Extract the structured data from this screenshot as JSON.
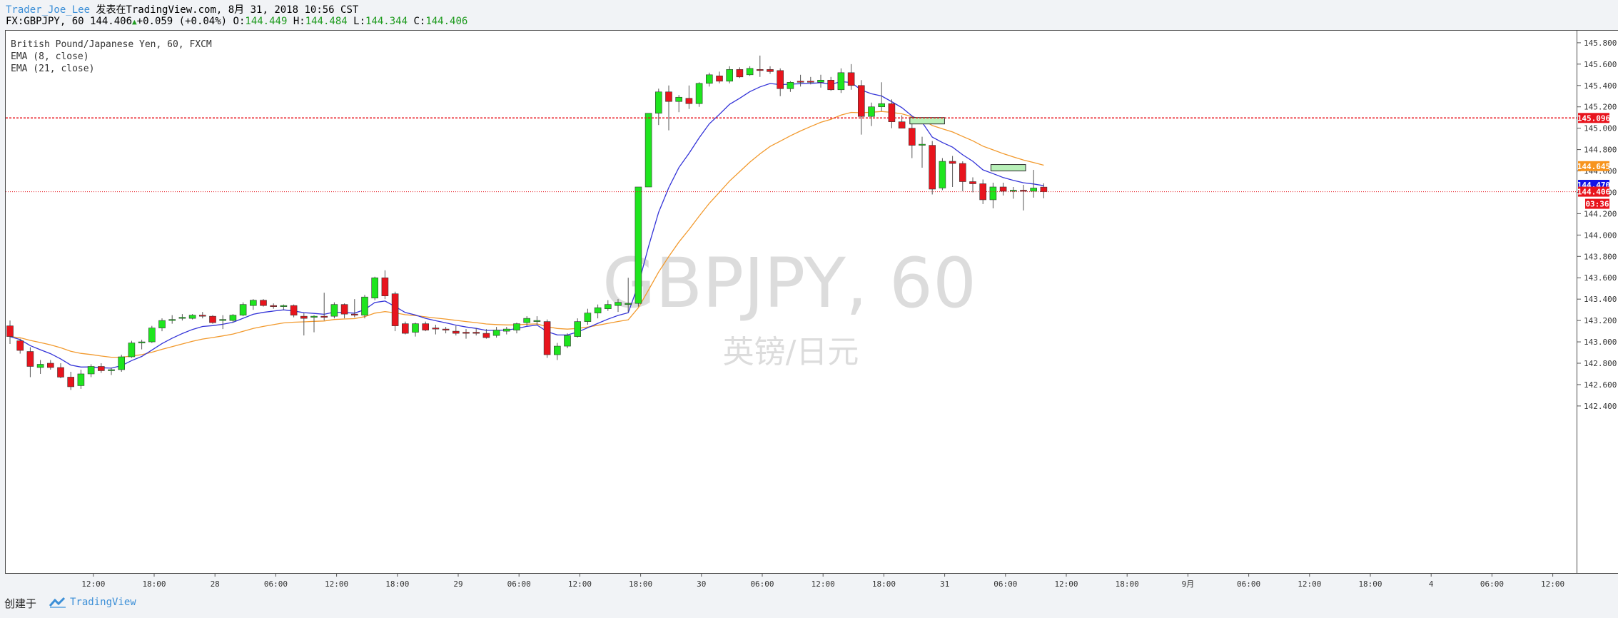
{
  "header": {
    "author": "Trader_Joe_Lee",
    "published": "发表在TradingView.com, 8月 31, 2018 10:56 CST",
    "symbol": "FX:GBPJPY, 60",
    "last": "144.406",
    "change": "+0.059 (+0.04%)",
    "o_label": "O:",
    "o_value": "144.449",
    "h_label": "H:",
    "h_value": "144.484",
    "l_label": "L:",
    "l_value": "144.344",
    "c_label": "C:",
    "c_value": "144.406"
  },
  "legend": {
    "line1": "British Pound/Japanese Yen, 60, FXCM",
    "line2": "EMA (8, close)",
    "line3": "EMA (21, close)"
  },
  "watermark": {
    "symbol": "GBPJPY, 60",
    "name": "英镑/日元"
  },
  "footer": {
    "created": "创建于",
    "brand": "TradingView"
  },
  "colors": {
    "up": "#1ee51e",
    "down": "#e8141d",
    "ema8": "#3434d8",
    "ema21": "#f29a2e",
    "resistance": "#e8141d",
    "orange_tag": "#f7941d",
    "blue_tag": "#1414e6",
    "red_tag": "#e8141d"
  },
  "chart_data": {
    "type": "candlestick",
    "ylim": [
      142.3,
      145.9
    ],
    "y_ticks": [
      142.4,
      142.6,
      142.8,
      143.0,
      143.2,
      143.4,
      143.6,
      143.8,
      144.0,
      144.2,
      144.4,
      144.6,
      144.8,
      145.0,
      145.2,
      145.4,
      145.6,
      145.8
    ],
    "x_tick_labels": [
      "12:00",
      "18:00",
      "28",
      "06:00",
      "12:00",
      "18:00",
      "29",
      "06:00",
      "12:00",
      "18:00",
      "30",
      "06:00",
      "12:00",
      "18:00",
      "31",
      "06:00",
      "12:00",
      "18:00",
      "9月",
      "06:00",
      "12:00",
      "18:00",
      "4",
      "06:00",
      "12:00"
    ],
    "x_tick_bar_index": [
      4,
      10,
      16,
      22,
      28,
      34,
      40,
      46,
      52,
      58,
      64,
      70,
      76,
      82,
      88,
      94,
      100,
      106,
      112,
      118,
      124,
      130,
      136,
      142,
      148
    ],
    "candles": [
      {
        "o": 143.15,
        "h": 143.2,
        "l": 142.98,
        "c": 143.05
      },
      {
        "o": 143.01,
        "h": 143.03,
        "l": 142.89,
        "c": 142.92
      },
      {
        "o": 142.91,
        "h": 142.95,
        "l": 142.67,
        "c": 142.77
      },
      {
        "o": 142.76,
        "h": 142.83,
        "l": 142.7,
        "c": 142.79
      },
      {
        "o": 142.8,
        "h": 142.83,
        "l": 142.74,
        "c": 142.76
      },
      {
        "o": 142.76,
        "h": 142.8,
        "l": 142.66,
        "c": 142.67
      },
      {
        "o": 142.67,
        "h": 142.72,
        "l": 142.55,
        "c": 142.58
      },
      {
        "o": 142.59,
        "h": 142.74,
        "l": 142.56,
        "c": 142.7
      },
      {
        "o": 142.7,
        "h": 142.79,
        "l": 142.67,
        "c": 142.77
      },
      {
        "o": 142.77,
        "h": 142.8,
        "l": 142.71,
        "c": 142.73
      },
      {
        "o": 142.73,
        "h": 142.76,
        "l": 142.69,
        "c": 142.74
      },
      {
        "o": 142.74,
        "h": 142.88,
        "l": 142.72,
        "c": 142.86
      },
      {
        "o": 142.86,
        "h": 143.01,
        "l": 142.85,
        "c": 142.99
      },
      {
        "o": 142.99,
        "h": 143.02,
        "l": 142.93,
        "c": 143.0
      },
      {
        "o": 143.0,
        "h": 143.15,
        "l": 142.99,
        "c": 143.13
      },
      {
        "o": 143.13,
        "h": 143.22,
        "l": 143.1,
        "c": 143.2
      },
      {
        "o": 143.2,
        "h": 143.25,
        "l": 143.17,
        "c": 143.21
      },
      {
        "o": 143.22,
        "h": 143.26,
        "l": 143.2,
        "c": 143.23
      },
      {
        "o": 143.22,
        "h": 143.26,
        "l": 143.21,
        "c": 143.25
      },
      {
        "o": 143.25,
        "h": 143.28,
        "l": 143.22,
        "c": 143.24
      },
      {
        "o": 143.24,
        "h": 143.25,
        "l": 143.17,
        "c": 143.18
      },
      {
        "o": 143.2,
        "h": 143.25,
        "l": 143.12,
        "c": 143.21
      },
      {
        "o": 143.2,
        "h": 143.26,
        "l": 143.18,
        "c": 143.25
      },
      {
        "o": 143.25,
        "h": 143.37,
        "l": 143.24,
        "c": 143.35
      },
      {
        "o": 143.34,
        "h": 143.4,
        "l": 143.3,
        "c": 143.39
      },
      {
        "o": 143.39,
        "h": 143.4,
        "l": 143.33,
        "c": 143.34
      },
      {
        "o": 143.34,
        "h": 143.36,
        "l": 143.31,
        "c": 143.33
      },
      {
        "o": 143.33,
        "h": 143.35,
        "l": 143.3,
        "c": 143.34
      },
      {
        "o": 143.34,
        "h": 143.35,
        "l": 143.23,
        "c": 143.25
      },
      {
        "o": 143.24,
        "h": 143.27,
        "l": 143.06,
        "c": 143.22
      },
      {
        "o": 143.23,
        "h": 143.25,
        "l": 143.09,
        "c": 143.24
      },
      {
        "o": 143.24,
        "h": 143.46,
        "l": 143.2,
        "c": 143.23
      },
      {
        "o": 143.24,
        "h": 143.37,
        "l": 143.22,
        "c": 143.35
      },
      {
        "o": 143.35,
        "h": 143.36,
        "l": 143.22,
        "c": 143.26
      },
      {
        "o": 143.26,
        "h": 143.4,
        "l": 143.23,
        "c": 143.25
      },
      {
        "o": 143.25,
        "h": 143.44,
        "l": 143.22,
        "c": 143.42
      },
      {
        "o": 143.41,
        "h": 143.61,
        "l": 143.39,
        "c": 143.6
      },
      {
        "o": 143.6,
        "h": 143.67,
        "l": 143.4,
        "c": 143.43
      },
      {
        "o": 143.45,
        "h": 143.47,
        "l": 143.1,
        "c": 143.15
      },
      {
        "o": 143.17,
        "h": 143.19,
        "l": 143.07,
        "c": 143.08
      },
      {
        "o": 143.09,
        "h": 143.18,
        "l": 143.05,
        "c": 143.17
      },
      {
        "o": 143.17,
        "h": 143.19,
        "l": 143.1,
        "c": 143.11
      },
      {
        "o": 143.13,
        "h": 143.16,
        "l": 143.07,
        "c": 143.12
      },
      {
        "o": 143.12,
        "h": 143.14,
        "l": 143.08,
        "c": 143.11
      },
      {
        "o": 143.1,
        "h": 143.15,
        "l": 143.06,
        "c": 143.08
      },
      {
        "o": 143.09,
        "h": 143.12,
        "l": 143.03,
        "c": 143.08
      },
      {
        "o": 143.09,
        "h": 143.13,
        "l": 143.06,
        "c": 143.08
      },
      {
        "o": 143.08,
        "h": 143.12,
        "l": 143.03,
        "c": 143.04
      },
      {
        "o": 143.06,
        "h": 143.14,
        "l": 143.04,
        "c": 143.11
      },
      {
        "o": 143.1,
        "h": 143.14,
        "l": 143.07,
        "c": 143.12
      },
      {
        "o": 143.11,
        "h": 143.18,
        "l": 143.08,
        "c": 143.17
      },
      {
        "o": 143.18,
        "h": 143.24,
        "l": 143.15,
        "c": 143.22
      },
      {
        "o": 143.2,
        "h": 143.24,
        "l": 143.16,
        "c": 143.2
      },
      {
        "o": 143.19,
        "h": 143.21,
        "l": 142.85,
        "c": 142.88
      },
      {
        "o": 142.88,
        "h": 142.99,
        "l": 142.83,
        "c": 142.96
      },
      {
        "o": 142.96,
        "h": 143.08,
        "l": 142.94,
        "c": 143.06
      },
      {
        "o": 143.05,
        "h": 143.22,
        "l": 143.04,
        "c": 143.19
      },
      {
        "o": 143.19,
        "h": 143.31,
        "l": 143.16,
        "c": 143.27
      },
      {
        "o": 143.27,
        "h": 143.35,
        "l": 143.22,
        "c": 143.32
      },
      {
        "o": 143.31,
        "h": 143.39,
        "l": 143.29,
        "c": 143.35
      },
      {
        "o": 143.34,
        "h": 143.4,
        "l": 143.28,
        "c": 143.37
      },
      {
        "o": 143.36,
        "h": 143.6,
        "l": 143.28,
        "c": 143.36
      },
      {
        "o": 143.36,
        "h": 144.45,
        "l": 143.33,
        "c": 144.45
      },
      {
        "o": 144.45,
        "h": 145.14,
        "l": 144.45,
        "c": 145.14
      },
      {
        "o": 145.14,
        "h": 145.37,
        "l": 145.03,
        "c": 145.34
      },
      {
        "o": 145.34,
        "h": 145.4,
        "l": 144.98,
        "c": 145.25
      },
      {
        "o": 145.25,
        "h": 145.31,
        "l": 145.15,
        "c": 145.29
      },
      {
        "o": 145.28,
        "h": 145.4,
        "l": 145.18,
        "c": 145.23
      },
      {
        "o": 145.23,
        "h": 145.43,
        "l": 145.2,
        "c": 145.42
      },
      {
        "o": 145.42,
        "h": 145.52,
        "l": 145.39,
        "c": 145.5
      },
      {
        "o": 145.49,
        "h": 145.53,
        "l": 145.42,
        "c": 145.44
      },
      {
        "o": 145.44,
        "h": 145.58,
        "l": 145.42,
        "c": 145.55
      },
      {
        "o": 145.55,
        "h": 145.57,
        "l": 145.47,
        "c": 145.48
      },
      {
        "o": 145.5,
        "h": 145.58,
        "l": 145.49,
        "c": 145.56
      },
      {
        "o": 145.55,
        "h": 145.68,
        "l": 145.48,
        "c": 145.54
      },
      {
        "o": 145.55,
        "h": 145.58,
        "l": 145.51,
        "c": 145.53
      },
      {
        "o": 145.54,
        "h": 145.56,
        "l": 145.3,
        "c": 145.37
      },
      {
        "o": 145.37,
        "h": 145.44,
        "l": 145.34,
        "c": 145.43
      },
      {
        "o": 145.44,
        "h": 145.5,
        "l": 145.39,
        "c": 145.43
      },
      {
        "o": 145.44,
        "h": 145.48,
        "l": 145.41,
        "c": 145.43
      },
      {
        "o": 145.43,
        "h": 145.5,
        "l": 145.38,
        "c": 145.45
      },
      {
        "o": 145.45,
        "h": 145.48,
        "l": 145.35,
        "c": 145.36
      },
      {
        "o": 145.36,
        "h": 145.56,
        "l": 145.33,
        "c": 145.52
      },
      {
        "o": 145.52,
        "h": 145.6,
        "l": 145.36,
        "c": 145.4
      },
      {
        "o": 145.4,
        "h": 145.45,
        "l": 144.94,
        "c": 145.11
      },
      {
        "o": 145.11,
        "h": 145.24,
        "l": 145.02,
        "c": 145.2
      },
      {
        "o": 145.2,
        "h": 145.43,
        "l": 145.16,
        "c": 145.23
      },
      {
        "o": 145.23,
        "h": 145.27,
        "l": 145.0,
        "c": 145.06
      },
      {
        "o": 145.06,
        "h": 145.12,
        "l": 145.0,
        "c": 145.0
      },
      {
        "o": 145.0,
        "h": 145.05,
        "l": 144.72,
        "c": 144.84
      },
      {
        "o": 144.84,
        "h": 144.92,
        "l": 144.63,
        "c": 144.85
      },
      {
        "o": 144.84,
        "h": 144.88,
        "l": 144.38,
        "c": 144.43
      },
      {
        "o": 144.44,
        "h": 144.72,
        "l": 144.42,
        "c": 144.69
      },
      {
        "o": 144.69,
        "h": 144.74,
        "l": 144.45,
        "c": 144.67
      },
      {
        "o": 144.67,
        "h": 144.69,
        "l": 144.41,
        "c": 144.5
      },
      {
        "o": 144.5,
        "h": 144.54,
        "l": 144.4,
        "c": 144.48
      },
      {
        "o": 144.48,
        "h": 144.52,
        "l": 144.29,
        "c": 144.33
      },
      {
        "o": 144.33,
        "h": 144.49,
        "l": 144.25,
        "c": 144.45
      },
      {
        "o": 144.45,
        "h": 144.49,
        "l": 144.37,
        "c": 144.41
      },
      {
        "o": 144.41,
        "h": 144.45,
        "l": 144.34,
        "c": 144.42
      },
      {
        "o": 144.42,
        "h": 144.47,
        "l": 144.23,
        "c": 144.41
      },
      {
        "o": 144.41,
        "h": 144.61,
        "l": 144.35,
        "c": 144.44
      },
      {
        "o": 144.449,
        "h": 144.484,
        "l": 144.344,
        "c": 144.406
      }
    ],
    "series": [
      {
        "name": "EMA (8, close)",
        "last": 144.47
      },
      {
        "name": "EMA (21, close)",
        "last": 144.645
      }
    ],
    "resistance": 145.096,
    "last_price": 144.406,
    "countdown": "03:36",
    "zones": [
      {
        "bar_from": 89,
        "bar_to": 92,
        "y_low": 145.04,
        "y_high": 145.1
      },
      {
        "bar_from": 97,
        "bar_to": 100,
        "y_low": 144.6,
        "y_high": 144.66
      }
    ]
  }
}
